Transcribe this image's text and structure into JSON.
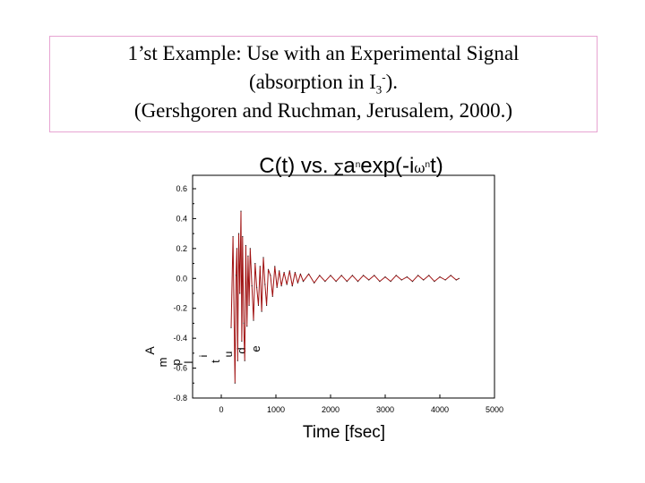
{
  "slide": {
    "title_line1": "1’st Example: Use with an Experimental Signal",
    "title_line2_pre": "(absorption in I",
    "title_line2_sub": "3",
    "title_line2_sup": "-",
    "title_line2_post": ").",
    "title_line3": "(Gershgoren and Ruchman, Jerusalem, 2000.)",
    "border_color": "#e7a4d2"
  },
  "chart_data": {
    "type": "line",
    "title": "C(t) vs. ∑anexp(-iωnt)",
    "title_parts": {
      "pre": "C(t) vs. ",
      "sum": "∑",
      "a": "a",
      "n1": "n",
      "mid": "exp(-i",
      "omega": "ω",
      "n2": "n",
      "post": "t)"
    },
    "xlabel": "Time [fsec]",
    "ylabel": "Amplitude",
    "ylabel_chars": [
      "A",
      "m",
      "p",
      "l",
      "i",
      "t",
      "u",
      "d",
      "e"
    ],
    "xlim": [
      -500,
      5000
    ],
    "ylim": [
      -0.8,
      0.7
    ],
    "x_ticks": [
      "0",
      "1000",
      "2000",
      "3000",
      "4000",
      "5000"
    ],
    "x_tick_values": [
      0,
      1000,
      2000,
      3000,
      4000,
      5000
    ],
    "y_ticks": [
      "0.6",
      "0.4",
      "0.2",
      "0.0",
      "-0.2",
      "-0.4",
      "-0.6",
      "-0.8"
    ],
    "y_tick_values": [
      0.6,
      0.4,
      0.2,
      0.0,
      -0.2,
      -0.4,
      -0.6,
      -0.8
    ],
    "grid": false,
    "series": [
      {
        "color": "#a01212",
        "x": [
          180,
          215,
          250,
          270,
          285,
          300,
          320,
          340,
          360,
          375,
          390,
          410,
          430,
          450,
          470,
          490,
          510,
          530,
          560,
          590,
          620,
          650,
          680,
          710,
          740,
          770,
          800,
          830,
          860,
          900,
          940,
          980,
          1020,
          1060,
          1100,
          1150,
          1200,
          1250,
          1300,
          1350,
          1400,
          1450,
          1500,
          1600,
          1700,
          1800,
          1900,
          2000,
          2100,
          2200,
          2300,
          2400,
          2500,
          2600,
          2700,
          2800,
          2900,
          3000,
          3100,
          3200,
          3300,
          3400,
          3500,
          3600,
          3700,
          3800,
          3900,
          4000,
          4100,
          4200,
          4300,
          4350
        ],
        "y": [
          -0.33,
          0.28,
          -0.7,
          0.02,
          0.2,
          -0.55,
          0.3,
          -0.1,
          0.45,
          -0.42,
          0.28,
          -0.3,
          -0.55,
          0.22,
          -0.32,
          0.15,
          -0.18,
          0.2,
          -0.05,
          -0.28,
          0.1,
          -0.06,
          -0.18,
          0.08,
          -0.22,
          0.14,
          -0.04,
          -0.18,
          0.06,
          0.02,
          -0.12,
          0.08,
          -0.06,
          0.05,
          -0.05,
          0.04,
          -0.04,
          0.05,
          -0.05,
          0.04,
          -0.03,
          0.03,
          -0.02,
          0.03,
          -0.03,
          0.02,
          -0.02,
          0.02,
          -0.02,
          0.02,
          -0.02,
          0.02,
          -0.02,
          0.02,
          -0.01,
          0.02,
          -0.02,
          0.01,
          -0.02,
          0.02,
          -0.01,
          0.01,
          -0.02,
          0.02,
          -0.01,
          0.02,
          -0.02,
          0.01,
          -0.01,
          0.02,
          -0.01,
          0.0
        ]
      }
    ]
  }
}
